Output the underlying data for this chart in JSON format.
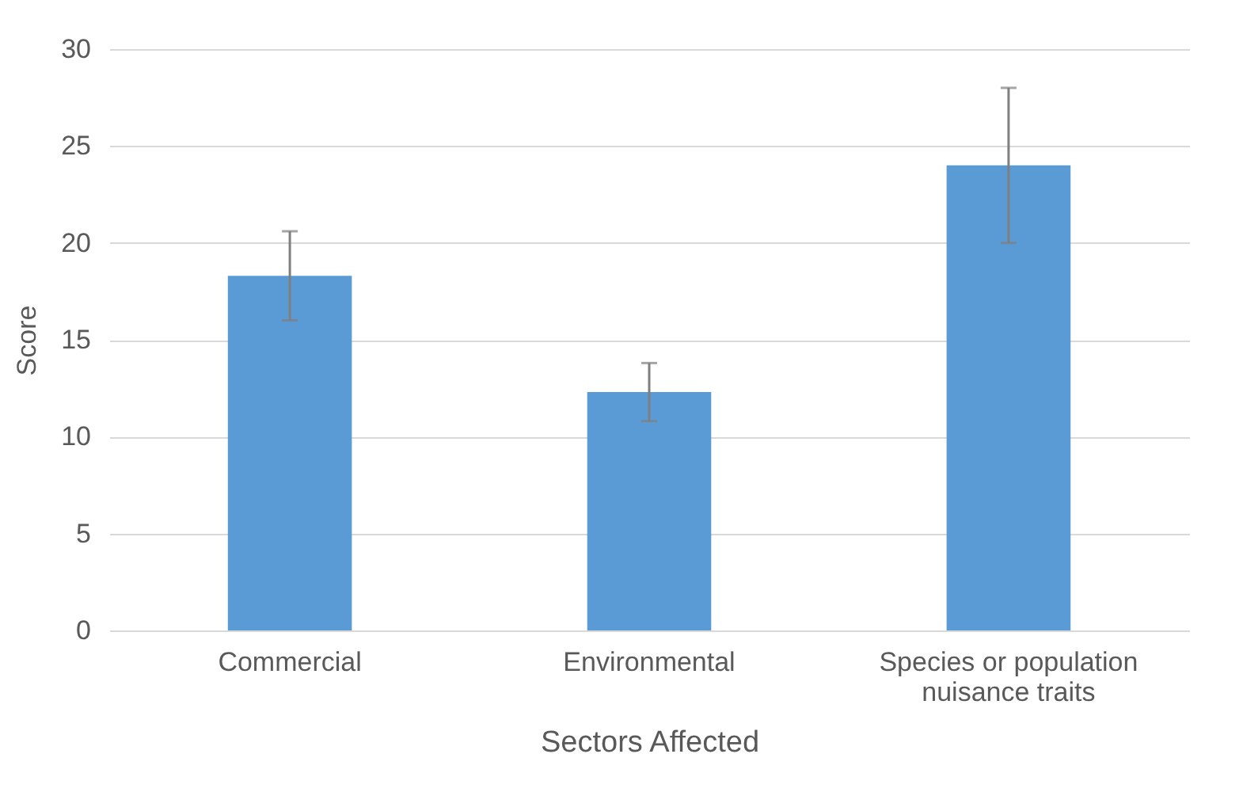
{
  "chart_data": {
    "type": "bar",
    "xlabel": "Sectors Affected",
    "ylabel": "Score",
    "categories": [
      "Commercial",
      "Environmental",
      "Species or population nuisance traits"
    ],
    "values": [
      18.3,
      12.3,
      24.0
    ],
    "errors": [
      2.3,
      1.5,
      4.0
    ],
    "color": "#5b9bd5",
    "ylim": [
      0,
      30
    ],
    "yticks": [
      0,
      5,
      10,
      15,
      20,
      25,
      30
    ],
    "grid": "y"
  }
}
